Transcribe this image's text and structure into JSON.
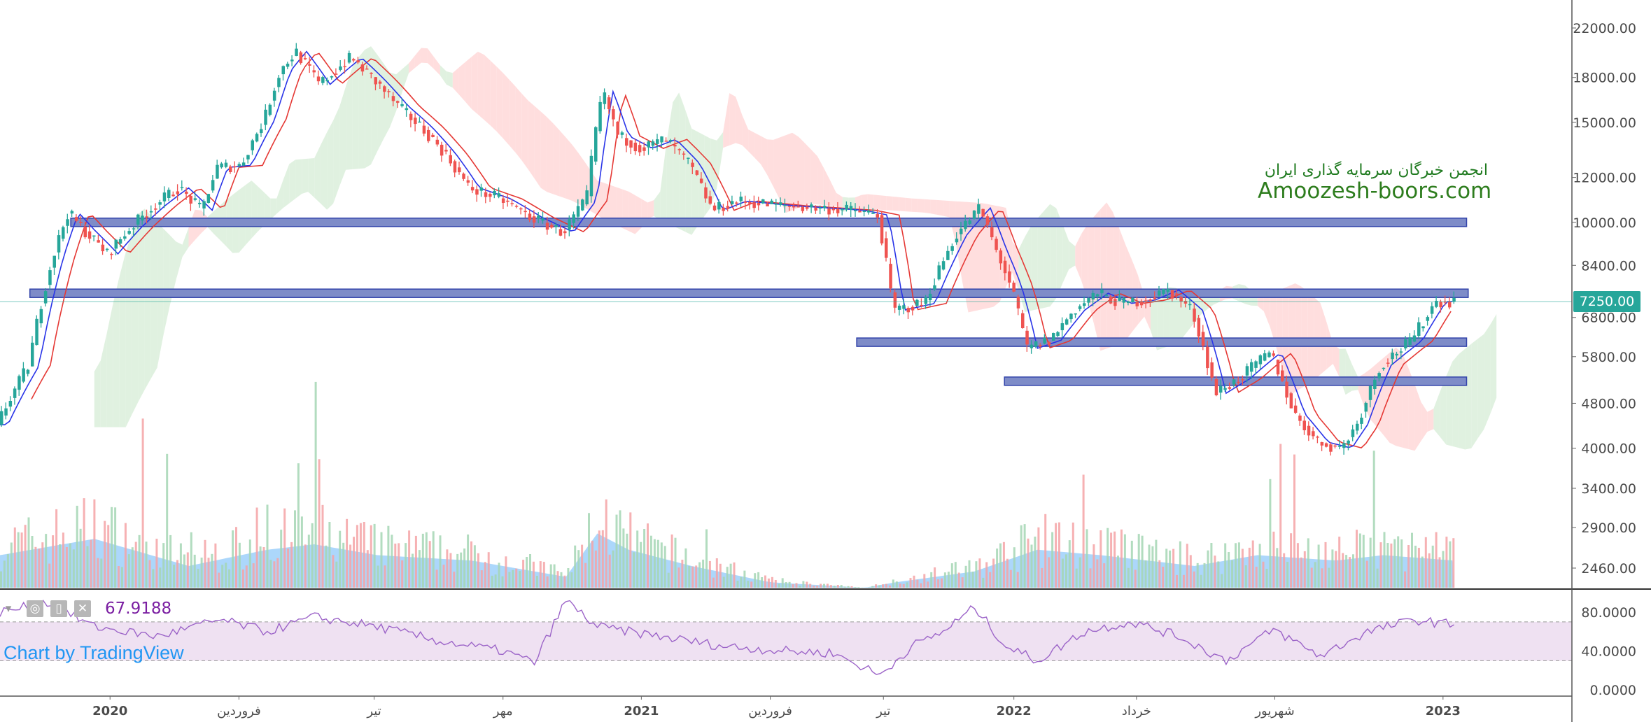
{
  "chart_data": [
    {
      "type": "candlestick",
      "price_axis": {
        "scale": "log",
        "ticks": [
          "22000.00",
          "18000.00",
          "15000.00",
          "12000.00",
          "10000.00",
          "8400.00",
          "6800.00",
          "5800.00",
          "4800.00",
          "4000.00",
          "3400.00",
          "2900.00",
          "2460.00"
        ],
        "range": [
          2300,
          23000
        ]
      },
      "time_axis_labels": [
        "2020",
        "فروردین",
        "تیر",
        "مهر",
        "2021",
        "فروردین",
        "تیر",
        "2022",
        "خرداد",
        "شهریور",
        "2023"
      ],
      "last_price_label": "7250.00",
      "last_price": 7250,
      "horizontal_zones": [
        {
          "level": 10000
        },
        {
          "level": 7500
        },
        {
          "level": 6150
        },
        {
          "level": 5250
        }
      ],
      "overlays": [
        "candles",
        "ichimoku-cloud",
        "moving-average-fast",
        "moving-average-slow",
        "volume",
        "volume-moving-average"
      ],
      "colors": {
        "up": "#26a69a",
        "down": "#ef5350",
        "fast_ma": "#2934e8",
        "slow_ma": "#e53935",
        "zone_fill": "#7e8cc8",
        "zone_border": "#3344aa",
        "cloud_bull": "#d8eed8",
        "cloud_bear": "#ffd6d6",
        "volume_ma": "#90caf9",
        "last_price": "#26a69a"
      },
      "price_path_anchors": [
        [
          0,
          4400
        ],
        [
          0.02,
          5600
        ],
        [
          0.035,
          8600
        ],
        [
          0.045,
          10400
        ],
        [
          0.055,
          9700
        ],
        [
          0.07,
          8800
        ],
        [
          0.085,
          9800
        ],
        [
          0.1,
          10700
        ],
        [
          0.115,
          11500
        ],
        [
          0.13,
          10500
        ],
        [
          0.14,
          12500
        ],
        [
          0.155,
          12600
        ],
        [
          0.17,
          15200
        ],
        [
          0.18,
          18500
        ],
        [
          0.19,
          20000
        ],
        [
          0.205,
          17500
        ],
        [
          0.225,
          19500
        ],
        [
          0.24,
          17800
        ],
        [
          0.255,
          16000
        ],
        [
          0.27,
          14700
        ],
        [
          0.285,
          13200
        ],
        [
          0.3,
          11500
        ],
        [
          0.32,
          11000
        ],
        [
          0.34,
          10200
        ],
        [
          0.36,
          9600
        ],
        [
          0.375,
          11000
        ],
        [
          0.385,
          17000
        ],
        [
          0.395,
          14200
        ],
        [
          0.41,
          13500
        ],
        [
          0.425,
          14000
        ],
        [
          0.44,
          12700
        ],
        [
          0.455,
          10500
        ],
        [
          0.47,
          10900
        ],
        [
          0.5,
          10700
        ],
        [
          0.545,
          10500
        ],
        [
          0.56,
          10300
        ],
        [
          0.57,
          7000
        ],
        [
          0.59,
          7200
        ],
        [
          0.61,
          9500
        ],
        [
          0.625,
          10600
        ],
        [
          0.635,
          9000
        ],
        [
          0.645,
          7700
        ],
        [
          0.655,
          6000
        ],
        [
          0.67,
          6200
        ],
        [
          0.685,
          7000
        ],
        [
          0.7,
          7500
        ],
        [
          0.715,
          7200
        ],
        [
          0.73,
          7300
        ],
        [
          0.745,
          7600
        ],
        [
          0.76,
          7000
        ],
        [
          0.775,
          5000
        ],
        [
          0.79,
          5300
        ],
        [
          0.81,
          5900
        ],
        [
          0.825,
          4600
        ],
        [
          0.84,
          4100
        ],
        [
          0.855,
          4000
        ],
        [
          0.865,
          4400
        ],
        [
          0.88,
          5600
        ],
        [
          0.9,
          6200
        ],
        [
          0.915,
          7250
        ],
        [
          0.925,
          7250
        ]
      ],
      "volume_axis": {
        "range": [
          0,
          100
        ]
      },
      "volume_path_anchors": [
        [
          0,
          30
        ],
        [
          0.06,
          45
        ],
        [
          0.12,
          20
        ],
        [
          0.17,
          35
        ],
        [
          0.2,
          40
        ],
        [
          0.24,
          30
        ],
        [
          0.3,
          25
        ],
        [
          0.36,
          10
        ],
        [
          0.38,
          50
        ],
        [
          0.4,
          35
        ],
        [
          0.44,
          20
        ],
        [
          0.49,
          5
        ],
        [
          0.55,
          0
        ],
        [
          0.57,
          5
        ],
        [
          0.62,
          15
        ],
        [
          0.66,
          35
        ],
        [
          0.7,
          30
        ],
        [
          0.76,
          20
        ],
        [
          0.8,
          30
        ],
        [
          0.85,
          25
        ],
        [
          0.88,
          30
        ],
        [
          0.925,
          25
        ]
      ]
    },
    {
      "type": "line",
      "value_label": "67.9188",
      "y_ticks": [
        "80.0000",
        "40.0000",
        "0.0000"
      ],
      "ylim": [
        0,
        100
      ],
      "bands": [
        30,
        70
      ],
      "color": "#9c64c8",
      "band_fill": "#efe1f2",
      "path_anchors": [
        [
          0,
          80
        ],
        [
          0.03,
          90
        ],
        [
          0.06,
          65
        ],
        [
          0.1,
          55
        ],
        [
          0.14,
          72
        ],
        [
          0.17,
          60
        ],
        [
          0.2,
          75
        ],
        [
          0.24,
          65
        ],
        [
          0.28,
          50
        ],
        [
          0.32,
          40
        ],
        [
          0.34,
          28
        ],
        [
          0.36,
          92
        ],
        [
          0.38,
          65
        ],
        [
          0.42,
          55
        ],
        [
          0.46,
          45
        ],
        [
          0.5,
          40
        ],
        [
          0.53,
          38
        ],
        [
          0.56,
          15
        ],
        [
          0.58,
          45
        ],
        [
          0.6,
          60
        ],
        [
          0.62,
          85
        ],
        [
          0.64,
          45
        ],
        [
          0.66,
          30
        ],
        [
          0.69,
          60
        ],
        [
          0.72,
          70
        ],
        [
          0.75,
          55
        ],
        [
          0.78,
          30
        ],
        [
          0.81,
          62
        ],
        [
          0.84,
          35
        ],
        [
          0.87,
          60
        ],
        [
          0.9,
          72
        ],
        [
          0.92,
          68
        ],
        [
          0.925,
          67.9
        ]
      ]
    }
  ],
  "watermark": {
    "line1": "انجمن خبرگان سرمایه گذاری ایران",
    "line2": "Amoozesh-boors.com"
  },
  "credit": "Chart by TradingView",
  "rsi_controls": [
    "◎",
    "▯",
    "✕"
  ]
}
